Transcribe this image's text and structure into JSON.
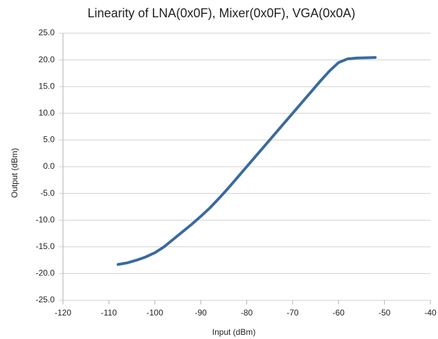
{
  "chart_data": {
    "type": "line",
    "title": "Linearity of LNA(0x0F), Mixer(0x0F), VGA(0x0A)",
    "x_label": "Input (dBm)",
    "y_label": "Output (dBm)",
    "x": [
      -108,
      -106,
      -104,
      -102,
      -100,
      -98,
      -96,
      -94,
      -92,
      -90,
      -88,
      -86,
      -84,
      -82,
      -80,
      -78,
      -76,
      -74,
      -72,
      -70,
      -68,
      -66,
      -64,
      -62,
      -60,
      -58,
      -56,
      -54,
      -52
    ],
    "series": [
      {
        "color": "#3a6a9f",
        "values": [
          -18.3,
          -18.0,
          -17.5,
          -16.9,
          -16.1,
          -15.0,
          -13.6,
          -12.2,
          -10.8,
          -9.3,
          -7.7,
          -5.9,
          -4.0,
          -2.0,
          0.0,
          2.0,
          4.0,
          6.0,
          8.0,
          10.0,
          12.0,
          14.0,
          16.0,
          17.9,
          19.5,
          20.2,
          20.35,
          20.4,
          20.45
        ]
      }
    ],
    "xlim": [
      -120,
      -40
    ],
    "xticks": [
      -120,
      -110,
      -100,
      -90,
      -80,
      -70,
      -60,
      -50,
      -40
    ],
    "ylim": [
      -25,
      25
    ],
    "yticks": [
      {
        "value": -25,
        "label": "-25.0"
      },
      {
        "value": -20,
        "label": "-20.0"
      },
      {
        "value": -15,
        "label": "-15.0"
      },
      {
        "value": -10,
        "label": "-10.0"
      },
      {
        "value": -5,
        "label": "-5.0"
      },
      {
        "value": 0,
        "label": "0.0"
      },
      {
        "value": 5,
        "label": "5.0"
      },
      {
        "value": 10,
        "label": "10.0"
      },
      {
        "value": 15,
        "label": "15.0"
      },
      {
        "value": 20,
        "label": "20.0"
      },
      {
        "value": 25,
        "label": "25.0"
      }
    ],
    "grid": true
  }
}
